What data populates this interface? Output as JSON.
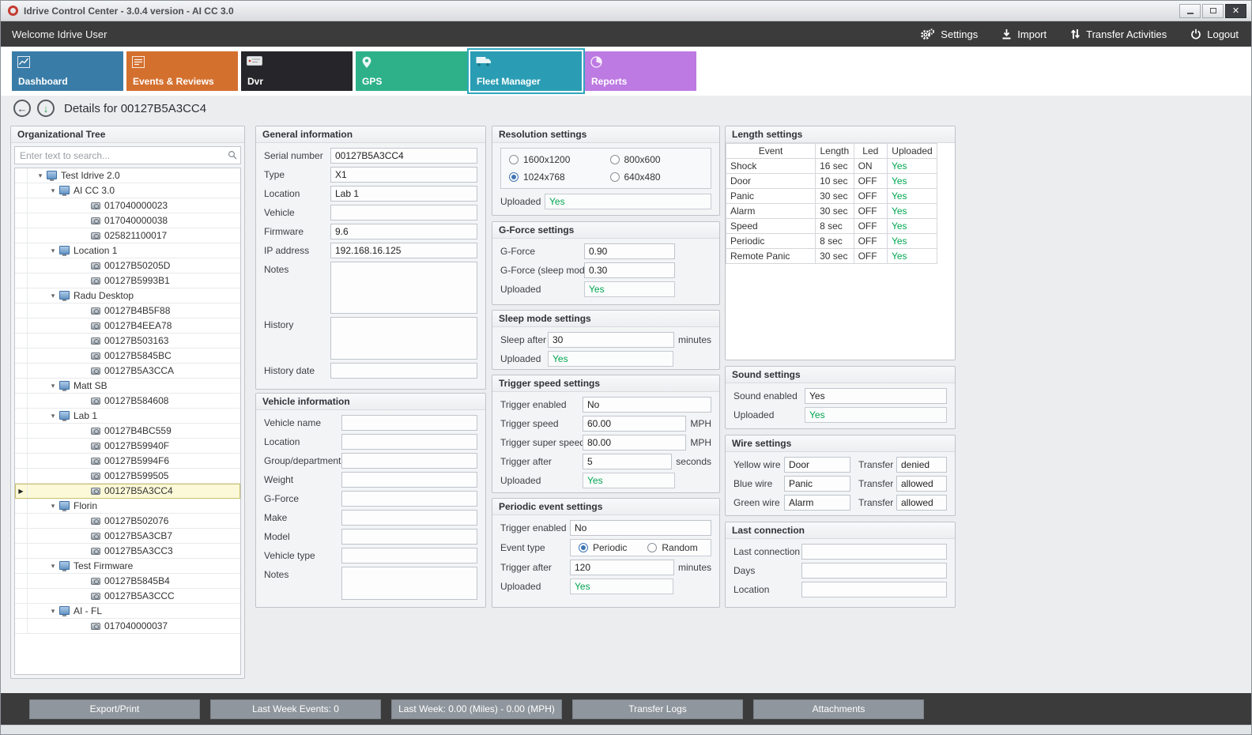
{
  "window": {
    "title": "Idrive Control Center - 3.0.4 version - AI CC 3.0",
    "controls": {
      "minimize": "",
      "maximize": "",
      "close": "✕"
    }
  },
  "topbar": {
    "welcome": "Welcome Idrive User",
    "settings": "Settings",
    "import": "Import",
    "transfer_activities": "Transfer Activities",
    "logout": "Logout"
  },
  "tabs": [
    {
      "label": "Dashboard",
      "color": "#3a7ca8",
      "icon": "dashboard-chart-icon",
      "selected": false
    },
    {
      "label": "Events & Reviews",
      "color": "#d4702e",
      "icon": "events-reviews-icon",
      "selected": false
    },
    {
      "label": "Dvr",
      "color": "#26262a",
      "icon": "dvr-device-icon",
      "selected": false
    },
    {
      "label": "GPS",
      "color": "#2eb189",
      "icon": "gps-pin-icon",
      "selected": false
    },
    {
      "label": "Fleet Manager",
      "color": "#2a9db4",
      "icon": "fleet-truck-icon",
      "selected": true
    },
    {
      "label": "Reports",
      "color": "#bd7ae2",
      "icon": "reports-pie-icon",
      "selected": false
    }
  ],
  "details": {
    "title": "Details for 00127B5A3CC4"
  },
  "org_tree": {
    "title": "Organizational Tree",
    "search_placeholder": "Enter text to search...",
    "nodes": [
      {
        "label": "Test Idrive 2.0",
        "level": 0,
        "type": "group"
      },
      {
        "label": "AI CC 3.0",
        "level": 1,
        "type": "group"
      },
      {
        "label": "017040000023",
        "level": 2,
        "type": "device"
      },
      {
        "label": "017040000038",
        "level": 2,
        "type": "device"
      },
      {
        "label": "025821100017",
        "level": 2,
        "type": "device"
      },
      {
        "label": "Location 1",
        "level": 1,
        "type": "group"
      },
      {
        "label": "00127B50205D",
        "level": 2,
        "type": "device"
      },
      {
        "label": "00127B5993B1",
        "level": 2,
        "type": "device"
      },
      {
        "label": "Radu Desktop",
        "level": 1,
        "type": "group"
      },
      {
        "label": "00127B4B5F88",
        "level": 2,
        "type": "device"
      },
      {
        "label": "00127B4EEA78",
        "level": 2,
        "type": "device"
      },
      {
        "label": "00127B503163",
        "level": 2,
        "type": "device"
      },
      {
        "label": "00127B5845BC",
        "level": 2,
        "type": "device"
      },
      {
        "label": "00127B5A3CCA",
        "level": 2,
        "type": "device"
      },
      {
        "label": "Matt SB",
        "level": 1,
        "type": "group"
      },
      {
        "label": "00127B584608",
        "level": 2,
        "type": "device"
      },
      {
        "label": "Lab 1",
        "level": 1,
        "type": "group"
      },
      {
        "label": "00127B4BC559",
        "level": 2,
        "type": "device"
      },
      {
        "label": "00127B59940F",
        "level": 2,
        "type": "device"
      },
      {
        "label": "00127B5994F6",
        "level": 2,
        "type": "device"
      },
      {
        "label": "00127B599505",
        "level": 2,
        "type": "device"
      },
      {
        "label": "00127B5A3CC4",
        "level": 2,
        "type": "device",
        "selected": true
      },
      {
        "label": "Florin",
        "level": 1,
        "type": "group"
      },
      {
        "label": "00127B502076",
        "level": 2,
        "type": "device"
      },
      {
        "label": "00127B5A3CB7",
        "level": 2,
        "type": "device"
      },
      {
        "label": "00127B5A3CC3",
        "level": 2,
        "type": "device"
      },
      {
        "label": "Test Firmware",
        "level": 1,
        "type": "group"
      },
      {
        "label": "00127B5845B4",
        "level": 2,
        "type": "device"
      },
      {
        "label": "00127B5A3CCC",
        "level": 2,
        "type": "device"
      },
      {
        "label": "AI - FL",
        "level": 1,
        "type": "group"
      },
      {
        "label": "017040000037",
        "level": 2,
        "type": "device"
      }
    ]
  },
  "general_info": {
    "title": "General information",
    "fields": [
      {
        "label": "Serial number",
        "value": "00127B5A3CC4"
      },
      {
        "label": "Type",
        "value": "X1"
      },
      {
        "label": "Location",
        "value": "Lab 1"
      },
      {
        "label": "Vehicle",
        "value": ""
      },
      {
        "label": "Firmware",
        "value": "9.6"
      },
      {
        "label": "IP address",
        "value": "192.168.16.125"
      },
      {
        "label": "Notes",
        "value": "",
        "multiline": true
      },
      {
        "label": "History",
        "value": "",
        "multiline": true
      },
      {
        "label": "History date",
        "value": ""
      }
    ]
  },
  "vehicle_info": {
    "title": "Vehicle information",
    "fields": [
      {
        "label": "Vehicle name",
        "value": ""
      },
      {
        "label": "Location",
        "value": ""
      },
      {
        "label": "Group/department",
        "value": ""
      },
      {
        "label": "Weight",
        "value": ""
      },
      {
        "label": "G-Force",
        "value": ""
      },
      {
        "label": "Make",
        "value": ""
      },
      {
        "label": "Model",
        "value": ""
      },
      {
        "label": "Vehicle type",
        "value": ""
      },
      {
        "label": "Notes",
        "value": "",
        "multiline": true
      }
    ]
  },
  "resolution_settings": {
    "title": "Resolution settings",
    "options": [
      {
        "label": "1600x1200",
        "selected": false
      },
      {
        "label": "800x600",
        "selected": false
      },
      {
        "label": "1024x768",
        "selected": true
      },
      {
        "label": "640x480",
        "selected": false
      }
    ],
    "uploaded_label": "Uploaded",
    "uploaded_value": "Yes"
  },
  "gforce_settings": {
    "title": "G-Force settings",
    "fields": [
      {
        "label": "G-Force",
        "value": "0.90"
      },
      {
        "label": "G-Force (sleep mode)",
        "value": "0.30"
      }
    ],
    "uploaded_label": "Uploaded",
    "uploaded_value": "Yes"
  },
  "sleep_settings": {
    "title": "Sleep mode settings",
    "fields": [
      {
        "label": "Sleep after",
        "value": "30",
        "suffix": "minutes"
      }
    ],
    "uploaded_label": "Uploaded",
    "uploaded_value": "Yes"
  },
  "trigger_speed_settings": {
    "title": "Trigger speed settings",
    "fields": [
      {
        "label": "Trigger enabled",
        "value": "No"
      },
      {
        "label": "Trigger speed",
        "value": "60.00",
        "suffix": "MPH"
      },
      {
        "label": "Trigger super speed",
        "value": "80.00",
        "suffix": "MPH"
      },
      {
        "label": "Trigger after",
        "value": "5",
        "suffix": "seconds"
      }
    ],
    "uploaded_label": "Uploaded",
    "uploaded_value": "Yes"
  },
  "periodic_settings": {
    "title": "Periodic event settings",
    "fields_before": [
      {
        "label": "Trigger enabled",
        "value": "No"
      }
    ],
    "event_type": {
      "label": "Event type",
      "options": [
        {
          "label": "Periodic",
          "selected": true
        },
        {
          "label": "Random",
          "selected": false
        }
      ]
    },
    "fields_after": [
      {
        "label": "Trigger after",
        "value": "120",
        "suffix": "minutes"
      }
    ],
    "uploaded_label": "Uploaded",
    "uploaded_value": "Yes"
  },
  "length_settings": {
    "title": "Length settings",
    "columns": [
      "Event",
      "Length",
      "Led",
      "Uploaded"
    ],
    "rows": [
      [
        "Shock",
        "16 sec",
        "ON",
        "Yes"
      ],
      [
        "Door",
        "10 sec",
        "OFF",
        "Yes"
      ],
      [
        "Panic",
        "30 sec",
        "OFF",
        "Yes"
      ],
      [
        "Alarm",
        "30 sec",
        "OFF",
        "Yes"
      ],
      [
        "Speed",
        "8 sec",
        "OFF",
        "Yes"
      ],
      [
        "Periodic",
        "8 sec",
        "OFF",
        "Yes"
      ],
      [
        "Remote Panic",
        "30 sec",
        "OFF",
        "Yes"
      ]
    ]
  },
  "sound_settings": {
    "title": "Sound settings",
    "fields": [
      {
        "label": "Sound enabled",
        "value": "Yes"
      }
    ],
    "uploaded_label": "Uploaded",
    "uploaded_value": "Yes"
  },
  "wire_settings": {
    "title": "Wire settings",
    "rows": [
      {
        "wire_label": "Yellow wire",
        "wire_value": "Door",
        "transfer_label": "Transfer",
        "transfer_value": "denied"
      },
      {
        "wire_label": "Blue wire",
        "wire_value": "Panic",
        "transfer_label": "Transfer",
        "transfer_value": "allowed"
      },
      {
        "wire_label": "Green wire",
        "wire_value": "Alarm",
        "transfer_label": "Transfer",
        "transfer_value": "allowed"
      }
    ]
  },
  "last_connection": {
    "title": "Last connection",
    "fields": [
      {
        "label": "Last connection",
        "value": ""
      },
      {
        "label": "Days",
        "value": ""
      },
      {
        "label": "Location",
        "value": ""
      }
    ]
  },
  "bottom_bar": {
    "buttons": [
      "Export/Print",
      "Last Week Events: 0",
      "Last Week: 0.00 (Miles) - 0.00 (MPH)",
      "Transfer Logs",
      "Attachments"
    ]
  },
  "colors": {
    "green_yes": "#00a651",
    "topbar_bg": "#3b3b3b",
    "selected_tab_border": "#2fa7bd",
    "tree_selected_bg": "#fcf9d8"
  }
}
